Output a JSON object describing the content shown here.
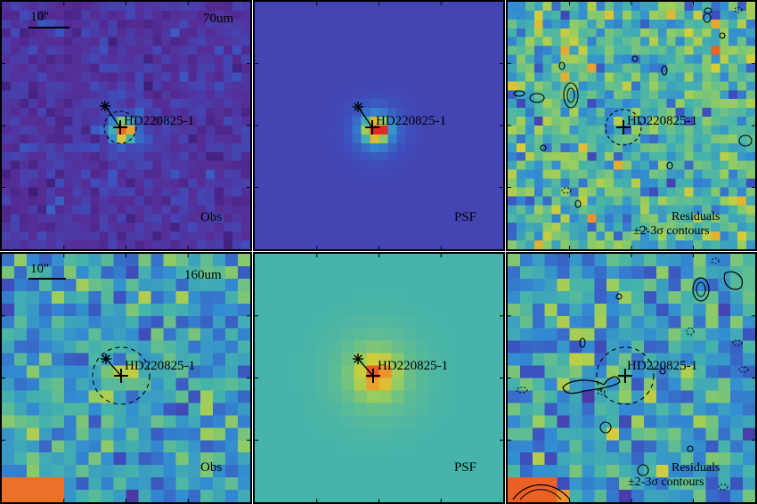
{
  "source_label": "HD220825-1",
  "scale_label": "10\"",
  "panels": [
    {
      "row": "70um",
      "kind": "obs",
      "wavelength": "70um",
      "caption": "Obs"
    },
    {
      "row": "70um",
      "kind": "psf",
      "caption": "PSF"
    },
    {
      "row": "70um",
      "kind": "res",
      "caption": "Residuals",
      "caption2": "±2-3σ contours"
    },
    {
      "row": "160um",
      "kind": "obs",
      "wavelength": "160um",
      "caption": "Obs"
    },
    {
      "row": "160um",
      "kind": "psf",
      "caption": "PSF"
    },
    {
      "row": "160um",
      "kind": "res",
      "caption": "Residuals",
      "caption2": "±2-3σ contours"
    }
  ],
  "colors": {
    "psf_bg_top": "#3b3aa6",
    "psf_bg_bottom": "#5fb79c",
    "source_peak": "#e8552a"
  }
}
